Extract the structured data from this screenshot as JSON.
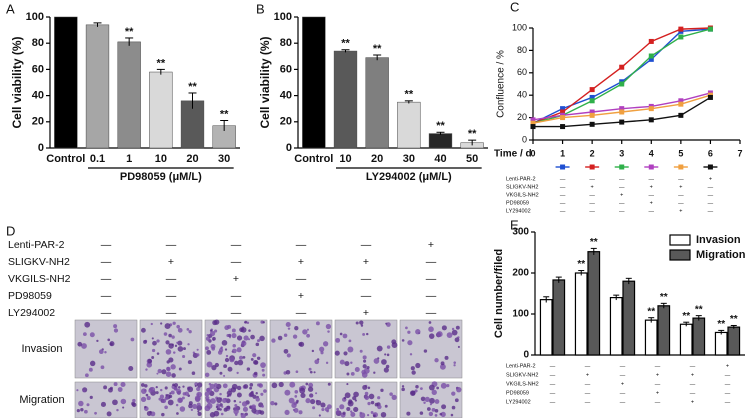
{
  "chart_data": [
    {
      "type": "bar",
      "panel": "A",
      "ylabel": "Cell viability (%)",
      "xlabel": "PD98059 (μM/L)",
      "categories": [
        "Control",
        "0.1",
        "1",
        "10",
        "20",
        "30"
      ],
      "values": [
        100,
        94,
        81,
        58,
        36,
        17
      ],
      "errors": [
        0,
        1.5,
        3,
        2,
        6,
        4
      ],
      "significance": [
        null,
        null,
        "**",
        "**",
        "**",
        "**"
      ],
      "colors": [
        "#000000",
        "#a6a6a6",
        "#8c8c8c",
        "#d9d9d9",
        "#595959",
        "#b3b3b3"
      ],
      "ylim": [
        0,
        100
      ],
      "yticks": [
        0,
        20,
        40,
        60,
        80,
        100
      ]
    },
    {
      "type": "bar",
      "panel": "B",
      "ylabel": "Cell viability (%)",
      "xlabel": "LY294002 (μM/L)",
      "categories": [
        "Control",
        "10",
        "20",
        "30",
        "40",
        "50"
      ],
      "values": [
        100,
        74,
        69,
        35,
        11,
        4
      ],
      "errors": [
        0,
        1,
        2,
        1,
        1,
        2
      ],
      "significance": [
        null,
        "**",
        "**",
        "**",
        "**",
        "**"
      ],
      "colors": [
        "#000000",
        "#595959",
        "#7f7f7f",
        "#d9d9d9",
        "#262626",
        "#d9d9d9"
      ],
      "ylim": [
        0,
        100
      ],
      "yticks": [
        0,
        20,
        40,
        60,
        80,
        100
      ]
    },
    {
      "type": "line",
      "panel": "C",
      "ylabel": "Confluence / %",
      "xlabel": "Time / d",
      "x": [
        0,
        1,
        2,
        3,
        4,
        5,
        6
      ],
      "series": [
        {
          "color": "#1f4fd1",
          "values": [
            15,
            28,
            38,
            52,
            72,
            97,
            99
          ]
        },
        {
          "color": "#d42020",
          "values": [
            15,
            25,
            45,
            65,
            88,
            99,
            100
          ]
        },
        {
          "color": "#2fb04a",
          "values": [
            15,
            22,
            35,
            50,
            75,
            92,
            99
          ]
        },
        {
          "color": "#b040c0",
          "values": [
            18,
            22,
            25,
            28,
            30,
            35,
            42
          ]
        },
        {
          "color": "#f0a040",
          "values": [
            15,
            20,
            22,
            25,
            28,
            32,
            40
          ]
        },
        {
          "color": "#111111",
          "values": [
            12,
            12,
            14,
            16,
            18,
            22,
            38
          ]
        }
      ],
      "xlim": [
        0,
        7
      ],
      "xticks": [
        0,
        1,
        2,
        3,
        4,
        5,
        6,
        7
      ],
      "ylim": [
        0,
        100
      ],
      "yticks": [
        0,
        20,
        40,
        60,
        80,
        100
      ],
      "treatments": {
        "rows": [
          "Lenti-PAR-2",
          "SLIGKV-NH2",
          "VKGILS-NH2",
          "PD98059",
          "LY294002"
        ],
        "signs": [
          [
            "—",
            "—",
            "—",
            "—",
            "—",
            "+"
          ],
          [
            "—",
            "+",
            "—",
            "+",
            "+",
            "—"
          ],
          [
            "—",
            "—",
            "+",
            "—",
            "—",
            "—"
          ],
          [
            "—",
            "—",
            "—",
            "+",
            "—",
            "—"
          ],
          [
            "—",
            "—",
            "—",
            "—",
            "+",
            "—"
          ]
        ]
      }
    },
    {
      "type": "grouped_bar",
      "panel": "E",
      "ylabel": "Cell number/filed",
      "series": [
        {
          "name": "Invasion",
          "color": "#ffffff",
          "values": [
            135,
            200,
            140,
            85,
            75,
            55
          ],
          "errors": [
            7,
            6,
            6,
            6,
            5,
            5
          ],
          "significance": [
            null,
            "**",
            null,
            "**",
            "**",
            "**"
          ]
        },
        {
          "name": "Migration",
          "color": "#595959",
          "values": [
            183,
            252,
            180,
            120,
            90,
            68
          ],
          "errors": [
            7,
            8,
            7,
            6,
            6,
            4
          ],
          "significance": [
            null,
            "**",
            null,
            "**",
            "**",
            "**"
          ]
        }
      ],
      "ylim": [
        0,
        300
      ],
      "yticks": [
        0,
        100,
        200,
        300
      ],
      "treatments": {
        "rows": [
          "Lenti-PAR-2",
          "SLIGKV-NH2",
          "VKGILS-NH2",
          "PD98059",
          "LY294002"
        ],
        "signs": [
          [
            "—",
            "—",
            "—",
            "—",
            "—",
            "+"
          ],
          [
            "—",
            "+",
            "—",
            "+",
            "+",
            "—"
          ],
          [
            "—",
            "—",
            "+",
            "—",
            "—",
            "—"
          ],
          [
            "—",
            "—",
            "—",
            "+",
            "—",
            "—"
          ],
          [
            "—",
            "—",
            "—",
            "—",
            "+",
            "—"
          ]
        ]
      }
    }
  ],
  "panel_d": {
    "panel": "D",
    "row_labels": [
      "Invasion",
      "Migration"
    ],
    "treatments": {
      "rows": [
        "Lenti-PAR-2",
        "SLIGKV-NH2",
        "VKGILS-NH2",
        "PD98059",
        "LY294002"
      ],
      "signs": [
        [
          "—",
          "—",
          "—",
          "—",
          "—",
          "+"
        ],
        [
          "—",
          "+",
          "—",
          "+",
          "+",
          "—"
        ],
        [
          "—",
          "—",
          "+",
          "—",
          "—",
          "—"
        ],
        [
          "—",
          "—",
          "—",
          "+",
          "—",
          "—"
        ],
        [
          "—",
          "—",
          "—",
          "—",
          "+",
          "—"
        ]
      ]
    }
  }
}
